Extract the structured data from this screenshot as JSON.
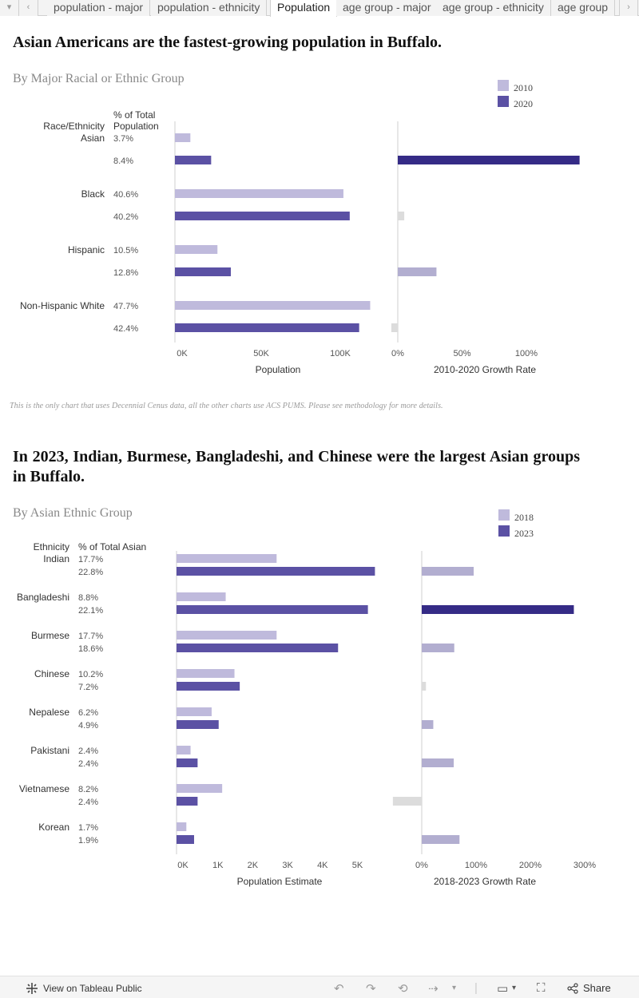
{
  "tabs": {
    "items": [
      "population - major",
      "population - ethnicity",
      "Population",
      "age group - major",
      "age group - ethnicity",
      "age group"
    ],
    "active_index": 2
  },
  "section1": {
    "title": "Asian Americans are the fastest-growing population in Buffalo.",
    "subtitle": "By Major Racial or Ethnic Group",
    "note": "This is the only chart that uses Decennial Cenus data, all the other charts use ACS PUMS. Please see methodology for more details."
  },
  "section2": {
    "title": "In 2023, Indian, Burmese, Bangladeshi, and Chinese were the largest Asian groups in Buffalo.",
    "subtitle": "By Asian Ethnic Group"
  },
  "footer": {
    "view_label": "View on Tableau Public",
    "share_label": "Share"
  },
  "colors": {
    "light": "#bfbadc",
    "dark": "#5b51a4",
    "darkest": "#352b86",
    "growth_light": "#b2aed0",
    "neutral": "#dcdcdc"
  },
  "chart_data": [
    {
      "type": "bar",
      "legend": [
        "2010",
        "2020"
      ],
      "legend_position": "top-right",
      "col_headers": [
        "Race/Ethnicity",
        "% of Total Population"
      ],
      "categories": [
        "Asian",
        "Black",
        "Hispanic",
        "Non-Hispanic White"
      ],
      "pct_labels": [
        [
          "3.7%",
          "8.4%"
        ],
        [
          "40.6%",
          "40.2%"
        ],
        [
          "10.5%",
          "12.8%"
        ],
        [
          "47.7%",
          "42.4%"
        ]
      ],
      "population": [
        [
          9800,
          23000
        ],
        [
          107000,
          111000
        ],
        [
          27000,
          35500
        ],
        [
          124000,
          117000
        ]
      ],
      "xlabel": "Population",
      "xlim": [
        0,
        140000
      ],
      "xticks": [
        "0K",
        "50K",
        "100K"
      ],
      "growth_rate": [
        141,
        5,
        30,
        -5
      ],
      "growth_xlabel": "2010-2020 Growth Rate",
      "growth_xlim": [
        0,
        140
      ],
      "growth_xticks": [
        "0%",
        "50%",
        "100%"
      ]
    },
    {
      "type": "bar",
      "legend": [
        "2018",
        "2023"
      ],
      "legend_position": "top-right",
      "col_headers": [
        "Ethnicity",
        "% of Total Asian"
      ],
      "categories": [
        "Indian",
        "Bangladeshi",
        "Burmese",
        "Chinese",
        "Nepalese",
        "Pakistani",
        "Vietnamese",
        "Korean"
      ],
      "pct_labels": [
        [
          "17.7%",
          "22.8%"
        ],
        [
          "8.8%",
          "22.1%"
        ],
        [
          "17.7%",
          "18.6%"
        ],
        [
          "10.2%",
          "7.2%"
        ],
        [
          "6.2%",
          "4.9%"
        ],
        [
          "2.4%",
          "2.4%"
        ],
        [
          "8.2%",
          "2.4%"
        ],
        [
          "1.7%",
          "1.9%"
        ]
      ],
      "population": [
        [
          2850,
          5650
        ],
        [
          1400,
          5450
        ],
        [
          2850,
          4600
        ],
        [
          1650,
          1800
        ],
        [
          1000,
          1200
        ],
        [
          400,
          600
        ],
        [
          1300,
          600
        ],
        [
          280,
          500
        ]
      ],
      "xlabel": "Population Estimate",
      "xlim": [
        0,
        5800
      ],
      "xticks": [
        "0K",
        "1K",
        "2K",
        "3K",
        "4K",
        "5K"
      ],
      "growth_rate": [
        99,
        290,
        62,
        8,
        22,
        61,
        -55,
        72
      ],
      "growth_xlabel": "2018-2023 Growth Rate",
      "growth_xlim": [
        0,
        300
      ],
      "growth_xticks": [
        "0%",
        "100%",
        "200%",
        "300%"
      ]
    }
  ]
}
